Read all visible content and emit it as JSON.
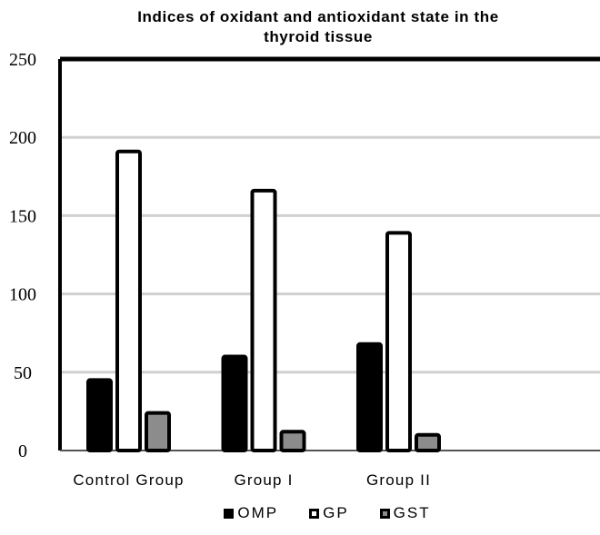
{
  "chart_data": {
    "type": "bar",
    "title": "Indices of oxidant and antioxidant state in the thyroid tissue",
    "title_lines": [
      "Indices of oxidant and antioxidant state in the",
      "thyroid tissue"
    ],
    "categories": [
      "Control Group",
      "Group I",
      "Group II",
      ""
    ],
    "series": [
      {
        "name": "OMP",
        "values": [
          45,
          60,
          68,
          null
        ],
        "color": "#000000",
        "stroke": "#000000"
      },
      {
        "name": "GP",
        "values": [
          191,
          166,
          139,
          null
        ],
        "color": "#ffffff",
        "stroke": "#000000"
      },
      {
        "name": "GST",
        "values": [
          24,
          12,
          10,
          null
        ],
        "color": "#8c8c8c",
        "stroke": "#000000"
      }
    ],
    "ylim": [
      0,
      250
    ],
    "yticks": [
      "0",
      "50",
      "100",
      "150",
      "200",
      "250"
    ],
    "grid": true,
    "legend_position": "bottom",
    "colors": {
      "grid": "#d0d0d0",
      "axis": "#000000"
    }
  }
}
